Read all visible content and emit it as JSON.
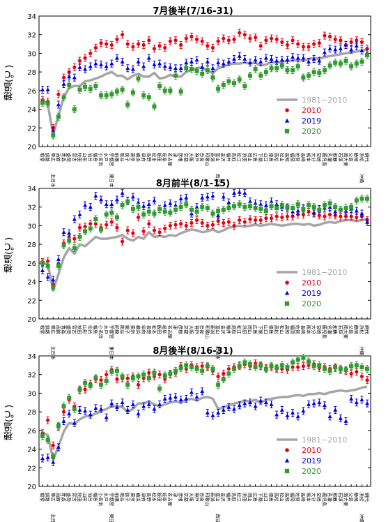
{
  "chart_data": [
    {
      "type": "scatter",
      "title": "7月後半(7/16-31)",
      "ylabel": "穂温(℃)",
      "ylim": [
        20,
        34
      ],
      "yticks": [
        20,
        22,
        24,
        26,
        28,
        30,
        32,
        34
      ],
      "legend_position": "lower-right",
      "series": [
        {
          "name": "1981−2010",
          "kind": "line",
          "color": "#a6a6a6",
          "values": [
            25.1,
            24.5,
            21.3,
            23.3,
            25.3,
            26.3,
            26.5,
            26.5,
            27.0,
            27.1,
            27.3,
            27.5,
            27.8,
            28.0,
            27.6,
            27.6,
            27.2,
            27.6,
            27.8,
            27.5,
            27.5,
            27.9,
            27.3,
            27.4,
            27.7,
            27.5,
            27.5,
            28.0,
            28.2,
            28.4,
            28.5,
            28.1,
            27.9,
            28.4,
            28.6,
            28.8,
            28.9,
            28.9,
            29.0,
            28.9,
            29.0,
            28.7,
            28.8,
            29.1,
            29.0,
            29.1,
            29.2,
            29.2,
            29.3,
            29.2,
            29.4,
            29.5,
            29.4,
            29.6,
            29.7,
            29.8,
            29.9,
            30.0,
            30.1,
            30.2,
            30.3,
            30.4
          ]
        },
        {
          "name": "2010",
          "kind": "marker",
          "marker": "circle",
          "color": "#e60012",
          "values": [
            25.0,
            24.8,
            22.0,
            25.6,
            27.4,
            28.0,
            28.5,
            29.2,
            29.5,
            30.0,
            30.6,
            31.1,
            31.0,
            30.9,
            31.5,
            32.0,
            31.0,
            30.7,
            31.0,
            30.9,
            31.4,
            30.5,
            30.8,
            30.6,
            31.3,
            31.4,
            30.9,
            31.6,
            31.8,
            31.5,
            31.3,
            30.8,
            30.6,
            31.3,
            31.6,
            31.4,
            31.5,
            32.2,
            32.0,
            31.6,
            31.7,
            30.8,
            31.4,
            31.6,
            31.5,
            31.2,
            30.9,
            31.4,
            31.0,
            30.7,
            30.7,
            31.0,
            31.1,
            31.9,
            31.8,
            31.5,
            31.4,
            30.9,
            31.2,
            31.4,
            31.2,
            30.5
          ]
        },
        {
          "name": "2019",
          "kind": "marker",
          "marker": "triangle",
          "color": "#0000e6",
          "values": [
            26.1,
            26.1,
            21.7,
            24.5,
            26.7,
            27.5,
            27.4,
            28.5,
            28.3,
            28.6,
            28.9,
            28.8,
            28.6,
            28.9,
            29.5,
            29.1,
            28.4,
            28.3,
            29.1,
            28.6,
            29.5,
            28.8,
            28.9,
            28.6,
            28.5,
            28.4,
            28.4,
            29.0,
            29.1,
            29.3,
            28.5,
            29.1,
            28.4,
            29.0,
            28.9,
            29.1,
            29.4,
            29.7,
            29.4,
            29.0,
            29.3,
            29.1,
            29.5,
            29.4,
            29.2,
            29.3,
            29.3,
            29.6,
            29.5,
            29.5,
            29.1,
            29.4,
            29.2,
            30.1,
            30.5,
            30.4,
            30.5,
            30.9,
            30.4,
            30.8,
            30.3,
            30.0
          ]
        },
        {
          "name": "2020",
          "kind": "marker",
          "marker": "square",
          "color": "#339933",
          "values": [
            24.7,
            24.6,
            21.2,
            23.2,
            25.3,
            26.6,
            24.0,
            26.1,
            26.4,
            26.2,
            26.5,
            25.5,
            25.5,
            25.6,
            25.9,
            26.1,
            24.5,
            25.8,
            27.3,
            25.5,
            25.3,
            24.3,
            26.5,
            26.0,
            26.0,
            27.6,
            25.9,
            28.4,
            28.3,
            28.1,
            27.8,
            28.2,
            27.4,
            26.2,
            26.6,
            27.0,
            26.8,
            27.2,
            26.5,
            27.6,
            28.3,
            27.6,
            28.0,
            28.4,
            28.4,
            28.7,
            28.2,
            28.2,
            28.6,
            27.4,
            27.6,
            28.0,
            27.9,
            28.2,
            28.7,
            29.0,
            28.9,
            29.2,
            28.6,
            28.9,
            29.1,
            29.8
          ]
        }
      ]
    },
    {
      "type": "scatter",
      "title": "8月前半(8/1-15)",
      "ylabel": "穂温(℃)",
      "ylim": [
        20,
        34
      ],
      "yticks": [
        20,
        22,
        24,
        26,
        28,
        30,
        32,
        34
      ],
      "legend_position": "lower-right",
      "series": [
        {
          "name": "1981−2010",
          "kind": "line",
          "color": "#a6a6a6",
          "values": [
            26.0,
            25.9,
            23.1,
            24.8,
            26.6,
            27.6,
            27.0,
            28.0,
            27.8,
            28.3,
            28.8,
            28.6,
            28.6,
            28.7,
            28.8,
            29.0,
            28.6,
            28.4,
            28.8,
            28.6,
            29.3,
            28.8,
            28.9,
            28.8,
            29.0,
            28.9,
            29.2,
            29.4,
            29.6,
            29.5,
            29.3,
            29.4,
            29.6,
            29.3,
            29.5,
            29.8,
            29.9,
            30.0,
            29.9,
            30.0,
            30.1,
            30.0,
            30.1,
            30.2,
            30.1,
            30.0,
            30.1,
            30.2,
            30.2,
            30.1,
            30.2,
            30.0,
            30.1,
            30.3,
            30.4,
            30.3,
            30.5,
            30.6,
            30.6,
            30.5,
            30.6,
            30.7
          ]
        },
        {
          "name": "2010",
          "kind": "marker",
          "marker": "circle",
          "color": "#e60012",
          "values": [
            26.1,
            26.2,
            23.7,
            25.9,
            28.1,
            28.8,
            28.6,
            29.8,
            29.9,
            30.2,
            30.2,
            29.8,
            30.1,
            30.4,
            29.8,
            28.3,
            29.5,
            29.2,
            30.9,
            29.4,
            30.2,
            29.5,
            29.3,
            29.7,
            30.0,
            30.1,
            30.2,
            30.0,
            30.3,
            30.6,
            30.3,
            30.0,
            30.1,
            30.5,
            30.3,
            30.4,
            30.0,
            30.6,
            30.4,
            30.7,
            30.6,
            30.6,
            30.8,
            30.8,
            31.0,
            30.9,
            31.0,
            31.0,
            31.2,
            31.2,
            31.5,
            31.3,
            31.1,
            31.0,
            31.2,
            31.1,
            31.0,
            31.0,
            31.0,
            30.9,
            31.0,
            30.6
          ]
        },
        {
          "name": "2019",
          "kind": "marker",
          "marker": "triangle",
          "color": "#0000e6",
          "values": [
            25.2,
            24.5,
            24.2,
            26.4,
            29.3,
            29.2,
            30.7,
            31.2,
            32.2,
            32.0,
            33.2,
            32.8,
            32.3,
            32.3,
            32.8,
            33.5,
            32.7,
            33.1,
            32.5,
            32.1,
            32.3,
            32.7,
            31.8,
            32.2,
            32.4,
            32.2,
            32.9,
            33.0,
            31.3,
            32.0,
            33.0,
            33.1,
            33.2,
            31.1,
            33.1,
            32.5,
            33.5,
            33.6,
            33.5,
            32.6,
            32.4,
            32.3,
            32.2,
            32.6,
            32.3,
            32.0,
            31.9,
            31.5,
            31.6,
            31.9,
            32.2,
            31.4,
            31.8,
            31.9,
            32.0,
            31.5,
            31.7,
            31.6,
            31.8,
            31.6,
            31.3,
            30.4
          ]
        },
        {
          "name": "2020",
          "kind": "marker",
          "marker": "square",
          "color": "#339933",
          "values": [
            26.0,
            25.7,
            23.4,
            25.7,
            27.9,
            28.4,
            27.6,
            28.8,
            29.4,
            29.7,
            30.7,
            29.6,
            31.2,
            31.4,
            30.9,
            32.2,
            32.6,
            31.8,
            32.0,
            31.2,
            31.5,
            31.3,
            31.8,
            31.5,
            31.4,
            31.7,
            32.0,
            32.3,
            31.7,
            31.5,
            32.0,
            31.9,
            31.3,
            31.6,
            31.7,
            31.9,
            32.1,
            32.3,
            32.0,
            32.1,
            31.9,
            31.8,
            31.6,
            32.1,
            31.9,
            32.2,
            32.0,
            31.9,
            32.3,
            31.8,
            32.2,
            32.0,
            31.7,
            32.2,
            32.4,
            32.0,
            31.7,
            31.9,
            32.0,
            32.7,
            32.9,
            32.9
          ]
        }
      ]
    },
    {
      "type": "scatter",
      "title": "8月後半(8/16-31)",
      "ylabel": "穂温(℃)",
      "ylim": [
        20,
        34
      ],
      "yticks": [
        20,
        22,
        24,
        26,
        28,
        30,
        32,
        34
      ],
      "legend_position": "lower-right",
      "series": [
        {
          "name": "1981−2010",
          "kind": "line",
          "color": "#a6a6a6",
          "values": [
            25.8,
            25.5,
            22.9,
            24.3,
            25.9,
            26.8,
            26.7,
            27.2,
            27.5,
            27.6,
            27.8,
            28.1,
            28.3,
            28.6,
            28.6,
            28.5,
            28.0,
            28.3,
            28.9,
            28.9,
            29.1,
            28.8,
            28.6,
            28.8,
            29.0,
            29.1,
            29.0,
            29.3,
            29.4,
            29.2,
            29.5,
            29.6,
            29.4,
            28.3,
            28.5,
            28.7,
            28.9,
            29.0,
            29.2,
            29.1,
            29.3,
            29.0,
            29.3,
            29.4,
            29.5,
            29.6,
            29.6,
            29.7,
            29.8,
            29.7,
            29.9,
            29.9,
            30.0,
            29.9,
            30.1,
            30.2,
            30.3,
            30.2,
            30.3,
            30.4,
            30.6,
            30.7
          ]
        },
        {
          "name": "2010",
          "kind": "marker",
          "marker": "circle",
          "color": "#e60012",
          "values": [
            25.7,
            27.1,
            24.4,
            26.4,
            28.0,
            29.3,
            28.6,
            30.3,
            30.4,
            31.0,
            31.5,
            31.4,
            32.0,
            32.5,
            31.5,
            31.6,
            31.6,
            31.8,
            30.9,
            31.6,
            32.2,
            31.8,
            32.0,
            31.5,
            32.0,
            32.2,
            32.9,
            32.6,
            33.0,
            32.8,
            32.9,
            32.8,
            32.4,
            31.8,
            32.1,
            32.6,
            32.8,
            33.0,
            33.1,
            32.9,
            33.2,
            32.9,
            32.7,
            32.8,
            32.6,
            32.6,
            32.5,
            32.8,
            32.8,
            32.9,
            33.0,
            33.1,
            32.7,
            32.8,
            32.6,
            32.7,
            32.5,
            32.4,
            32.1,
            32.3,
            31.8,
            31.4
          ]
        },
        {
          "name": "2019",
          "kind": "marker",
          "marker": "triangle",
          "color": "#0000e6",
          "values": [
            23.0,
            23.1,
            22.6,
            24.2,
            27.0,
            27.8,
            26.8,
            28.2,
            28.1,
            27.7,
            28.4,
            28.3,
            27.4,
            28.9,
            28.5,
            29.0,
            28.2,
            28.8,
            27.8,
            28.6,
            28.8,
            28.3,
            28.8,
            29.4,
            29.5,
            29.6,
            29.3,
            29.4,
            30.1,
            29.6,
            30.2,
            27.9,
            27.6,
            27.9,
            28.2,
            28.5,
            28.3,
            28.7,
            28.9,
            29.0,
            28.6,
            29.2,
            29.0,
            28.8,
            27.7,
            28.2,
            27.6,
            27.9,
            27.5,
            28.1,
            28.8,
            28.9,
            29.0,
            28.7,
            27.5,
            28.2,
            27.3,
            27.0,
            29.4,
            29.0,
            29.3,
            28.9
          ]
        },
        {
          "name": "2020",
          "kind": "marker",
          "marker": "square",
          "color": "#339933",
          "values": [
            25.4,
            25.0,
            23.2,
            26.5,
            28.6,
            29.5,
            28.3,
            30.4,
            31.1,
            30.8,
            31.6,
            30.9,
            31.3,
            32.3,
            32.4,
            31.8,
            30.9,
            31.6,
            31.8,
            32.0,
            31.6,
            32.2,
            30.5,
            31.9,
            32.1,
            32.4,
            32.7,
            33.0,
            32.8,
            32.6,
            32.4,
            32.9,
            32.6,
            30.9,
            31.5,
            32.1,
            32.6,
            32.9,
            33.3,
            33.1,
            32.8,
            33.0,
            32.6,
            32.9,
            32.7,
            33.0,
            32.8,
            33.3,
            33.6,
            33.8,
            33.4,
            32.9,
            33.0,
            32.6,
            32.4,
            32.8,
            32.6,
            32.5,
            32.9,
            33.0,
            32.8,
            32.6
          ]
        }
      ]
    }
  ],
  "stations": [
    "根室",
    "釧路",
    "帯広",
    "函館",
    "青森",
    "盛岡",
    "宮古",
    "秋田",
    "山形",
    "仙台",
    "福島",
    "小名浜",
    "水戸",
    "宇都宮",
    "前橋",
    "熊谷",
    "銚子",
    "東京",
    "横浜",
    "甲府",
    "長野",
    "松本",
    "飯田",
    "岐阜",
    "名古屋",
    "津",
    "彦根",
    "京都",
    "大阪",
    "神戸",
    "奈良",
    "和歌山",
    "新潟",
    "富山",
    "金沢",
    "福井",
    "鳥取",
    "松江",
    "浜田",
    "岡山",
    "広島",
    "下関",
    "山口",
    "徳島",
    "高松",
    "松山",
    "高知",
    "福岡",
    "佐賀",
    "長崎",
    "熊本",
    "大分",
    "宮崎",
    "鹿児島",
    "名瀬",
    "那覇",
    "石垣",
    "南大東",
    "父島",
    "静岡",
    "浜松",
    "網代"
  ],
  "axis_marks": [
    {
      "index": 2,
      "label": "北日本"
    },
    {
      "index": 13,
      "label": "東日本"
    },
    {
      "index": 33,
      "label": "西日本"
    },
    {
      "index": 60,
      "label": "沖縄"
    }
  ]
}
